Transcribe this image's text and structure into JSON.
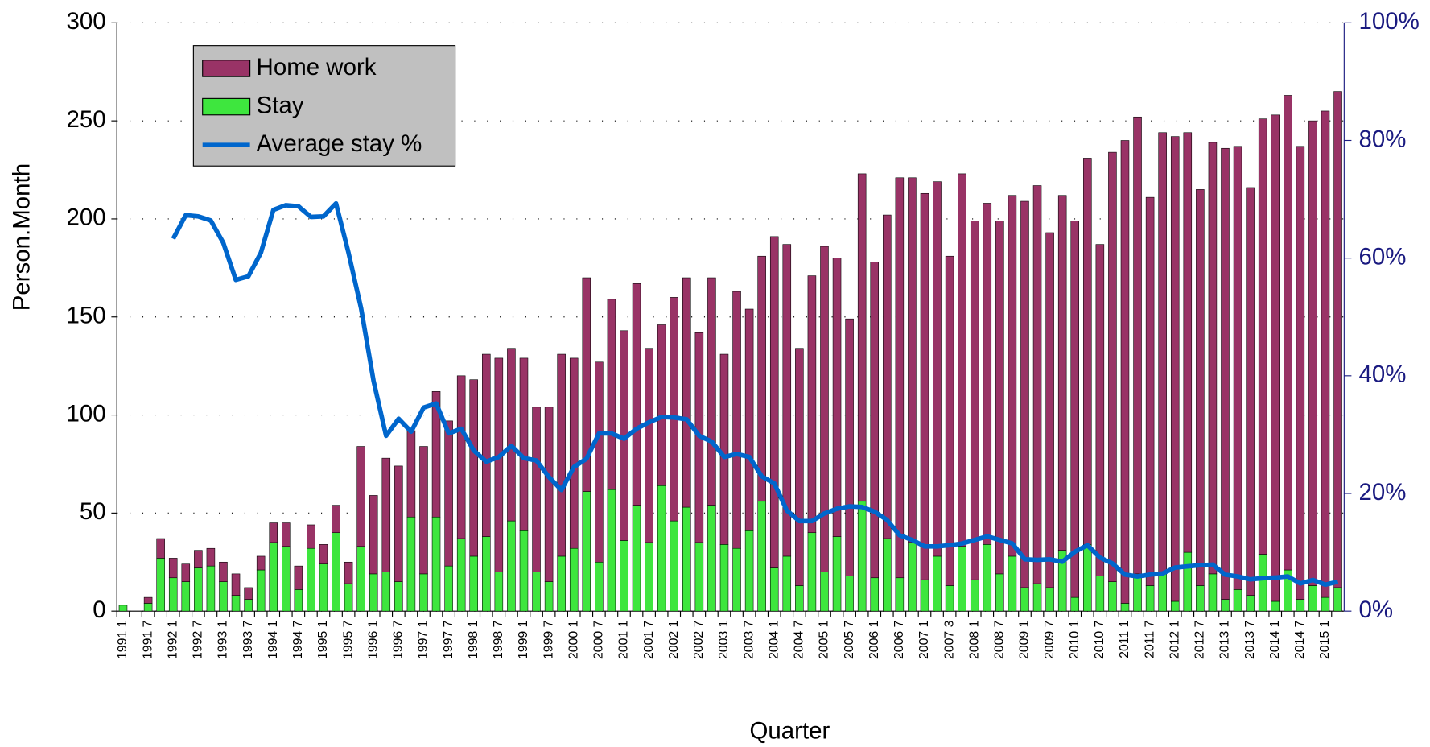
{
  "chart_data": {
    "type": "bar",
    "stacked": true,
    "x_label": "Quarter",
    "y_label": "Person.Month",
    "categories": [
      "1991 1",
      null,
      "1991 7",
      null,
      "1992 1",
      null,
      "1992 7",
      null,
      "1993 1",
      null,
      "1993 7",
      null,
      "1994 1",
      null,
      "1994 7",
      null,
      "1995 1",
      null,
      "1995 7",
      null,
      "1996 1",
      null,
      "1996 7",
      null,
      "1997 1",
      null,
      "1997 7",
      null,
      "1998 1",
      null,
      "1998 7",
      null,
      "1999 1",
      null,
      "1999 7",
      null,
      "2000 1",
      null,
      "2000 7",
      null,
      "2001 1",
      null,
      "2001 7",
      null,
      "2002 1",
      null,
      "2002 7",
      null,
      "2003 1",
      null,
      "2003 7",
      null,
      "2004 1",
      null,
      "2004 7",
      null,
      "2005 1",
      null,
      "2005 7",
      null,
      "2006 1",
      null,
      "2006 7",
      null,
      "2007 1",
      null,
      "2007 3",
      null,
      "2008 1",
      null,
      "2008 7",
      null,
      "2009 1",
      null,
      "2009 7",
      null,
      "2010 1",
      null,
      "2010 7",
      null,
      "2011 1",
      null,
      "2011 7",
      null,
      "2012 1",
      null,
      "2012 7",
      null,
      "2013 1",
      null,
      "2013 7",
      null,
      "2014 1",
      null,
      "2014 7",
      null,
      "2015 1",
      null
    ],
    "series": [
      {
        "name": "Home work",
        "type": "bar",
        "color": "#993366",
        "values": [
          0,
          0,
          3,
          10,
          10,
          9,
          9,
          9,
          10,
          11,
          6,
          7,
          10,
          12,
          12,
          12,
          10,
          14,
          11,
          51,
          40,
          58,
          59,
          44,
          65,
          64,
          74,
          83,
          90,
          93,
          109,
          88,
          88,
          84,
          89,
          103,
          97,
          109,
          102,
          97,
          107,
          113,
          99,
          82,
          114,
          117,
          107,
          116,
          97,
          131,
          113,
          125,
          169,
          159,
          121,
          131,
          166,
          142,
          131,
          167,
          161,
          165,
          204,
          186,
          197,
          191,
          168,
          190,
          183,
          174,
          180,
          184,
          197,
          203,
          181,
          181,
          192,
          197,
          169,
          219,
          236,
          233,
          198,
          225,
          237,
          214,
          202,
          220,
          230,
          226,
          208,
          222,
          248,
          242,
          231,
          237,
          248,
          253
        ]
      },
      {
        "name": "Stay",
        "type": "bar",
        "color": "#3ee63e",
        "values": [
          3,
          0,
          4,
          27,
          17,
          15,
          22,
          23,
          15,
          8,
          6,
          21,
          35,
          33,
          11,
          32,
          24,
          40,
          14,
          33,
          19,
          20,
          15,
          48,
          19,
          48,
          23,
          37,
          28,
          38,
          20,
          46,
          41,
          20,
          15,
          28,
          32,
          61,
          25,
          62,
          36,
          54,
          35,
          64,
          46,
          53,
          35,
          54,
          34,
          32,
          41,
          56,
          22,
          28,
          13,
          40,
          20,
          38,
          18,
          56,
          17,
          37,
          17,
          35,
          16,
          28,
          13,
          33,
          16,
          34,
          19,
          28,
          12,
          14,
          12,
          31,
          7,
          34,
          18,
          15,
          4,
          19,
          13,
          19,
          5,
          30,
          13,
          19,
          6,
          11,
          8,
          29,
          5,
          21,
          6,
          13,
          7,
          12
        ]
      },
      {
        "name": "Average stay %",
        "type": "line",
        "axis": "y2",
        "color": "#0066cc",
        "values": [
          null,
          null,
          null,
          null,
          63.3,
          67.3,
          67.1,
          66.4,
          62.6,
          56.3,
          56.9,
          60.9,
          68.2,
          69.0,
          68.8,
          67.0,
          67.1,
          69.3,
          60.9,
          51.5,
          39.1,
          29.8,
          32.7,
          30.5,
          34.6,
          35.3,
          30.2,
          31.0,
          27.3,
          25.4,
          26.2,
          28.1,
          26.0,
          25.6,
          22.8,
          20.6,
          24.5,
          25.9,
          30.2,
          30.2,
          29.3,
          31.0,
          32.1,
          33.0,
          32.9,
          32.6,
          29.8,
          28.8,
          26.2,
          26.7,
          26.2,
          22.9,
          21.7,
          17.1,
          15.3,
          15.3,
          16.6,
          17.4,
          17.8,
          17.7,
          16.9,
          15.5,
          12.9,
          12.1,
          11.0,
          11.0,
          11.2,
          11.5,
          12.1,
          12.7,
          12.1,
          11.5,
          8.8,
          8.7,
          8.8,
          8.4,
          10.1,
          11.2,
          9.1,
          8.1,
          6.2,
          5.9,
          6.2,
          6.4,
          7.4,
          7.6,
          7.8,
          7.9,
          6.2,
          5.9,
          5.4,
          5.6,
          5.7,
          5.9,
          4.7,
          5.3,
          4.5,
          5.0
        ]
      }
    ],
    "ylim": [
      0,
      300
    ],
    "yticks": [
      0,
      50,
      100,
      150,
      200,
      250,
      300
    ],
    "y2lim": [
      0,
      100
    ],
    "y2ticks": [
      {
        "value": 0,
        "label": "0%"
      },
      {
        "value": 20,
        "label": "20%"
      },
      {
        "value": 40,
        "label": "40%"
      },
      {
        "value": 60,
        "label": "60%"
      },
      {
        "value": 80,
        "label": "80%"
      },
      {
        "value": 100,
        "label": "100%"
      }
    ],
    "grid": true,
    "legend": "upper left"
  }
}
